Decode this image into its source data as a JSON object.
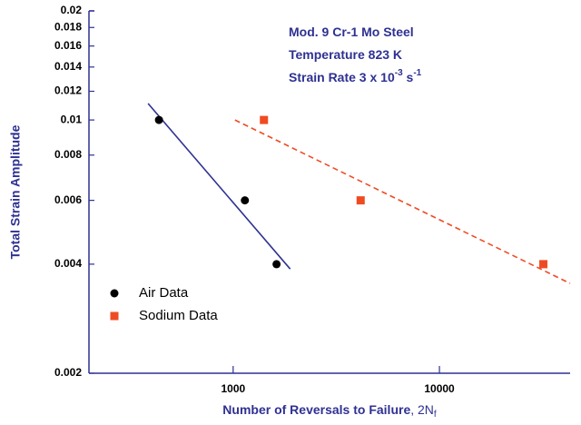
{
  "chart_data": {
    "type": "scatter",
    "log_x": true,
    "log_y": true,
    "xlabel_parts": [
      "Number of Reversals to Failure",
      ", 2N",
      "f"
    ],
    "ylabel": "Total Strain Amplitude",
    "annotations": [
      [
        "Mod. 9 Cr-1 Mo Steel"
      ],
      [
        "Temperature  823 K"
      ],
      [
        "Strain Rate 3 x 10",
        "-3",
        " s",
        "-1"
      ]
    ],
    "xlim": [
      200,
      43000
    ],
    "ylim": [
      0.002,
      0.02
    ],
    "xticks": [
      {
        "value": 1000,
        "label": "1000"
      },
      {
        "value": 10000,
        "label": "10000"
      }
    ],
    "yticks": [
      0.002,
      0.004,
      0.006,
      0.008,
      0.01,
      0.012,
      0.014,
      0.016,
      0.018,
      0.02
    ],
    "legend": "lower left",
    "axis_color": "#2e3192",
    "series": [
      {
        "name": "Air Data",
        "color": "#000000",
        "marker": "circle",
        "x": [
          437,
          1140,
          1623
        ],
        "values": [
          0.01,
          0.006,
          0.004
        ]
      },
      {
        "name": "Sodium Data",
        "color": "#ef4b23",
        "marker": "square",
        "x": [
          1410,
          4150,
          31900
        ],
        "values": [
          0.01,
          0.006,
          0.004
        ]
      }
    ],
    "fits": [
      {
        "color": "#2e3192",
        "dashed": false,
        "x": [
          387,
          1890
        ],
        "values": [
          0.0111,
          0.00388
        ]
      },
      {
        "color": "#ef4b23",
        "dashed": true,
        "x": [
          1020,
          43000
        ],
        "values": [
          0.01,
          0.00354
        ]
      }
    ]
  }
}
